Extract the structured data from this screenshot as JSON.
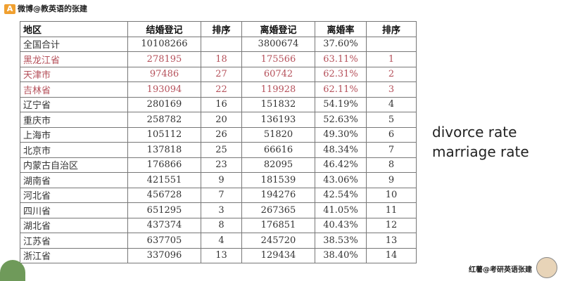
{
  "watermark_top": "微博@教英语的张建",
  "watermark_bottom": "红薯@考研英语张建",
  "side_notes": [
    "divorce rate",
    "marriage rate"
  ],
  "table": {
    "header": [
      "地区",
      "结婚登记",
      "排序",
      "离婚登记",
      "离婚率",
      "排序"
    ],
    "highlight_rows": [
      1,
      2,
      3
    ],
    "highlight_color": "#b5505a",
    "rows": [
      [
        "全国合计",
        "10108266",
        null,
        "3800674",
        "37.60%",
        null
      ],
      [
        "黑龙江省",
        "278195",
        "18",
        "175566",
        "63.11%",
        "1"
      ],
      [
        "天津市",
        "97486",
        "27",
        "60742",
        "62.31%",
        "2"
      ],
      [
        "吉林省",
        "193094",
        "22",
        "119928",
        "62.11%",
        "3"
      ],
      [
        "辽宁省",
        "280169",
        "16",
        "151832",
        "54.19%",
        "4"
      ],
      [
        "重庆市",
        "258782",
        "20",
        "136193",
        "52.63%",
        "5"
      ],
      [
        "上海市",
        "105112",
        "26",
        "51820",
        "49.30%",
        "6"
      ],
      [
        "北京市",
        "137818",
        "25",
        "66616",
        "48.34%",
        "7"
      ],
      [
        "内蒙古自治区",
        "176866",
        "23",
        "82095",
        "46.42%",
        "8"
      ],
      [
        "湖南省",
        "421551",
        "9",
        "181539",
        "43.06%",
        "9"
      ],
      [
        "河北省",
        "456728",
        "7",
        "194276",
        "42.54%",
        "10"
      ],
      [
        "四川省",
        "651295",
        "3",
        "267365",
        "41.05%",
        "11"
      ],
      [
        "湖北省",
        "437374",
        "8",
        "176851",
        "40.43%",
        "12"
      ],
      [
        "江苏省",
        "637705",
        "4",
        "245720",
        "38.53%",
        "13"
      ],
      [
        "浙江省",
        "337096",
        "13",
        "129434",
        "38.40%",
        "14"
      ]
    ]
  }
}
